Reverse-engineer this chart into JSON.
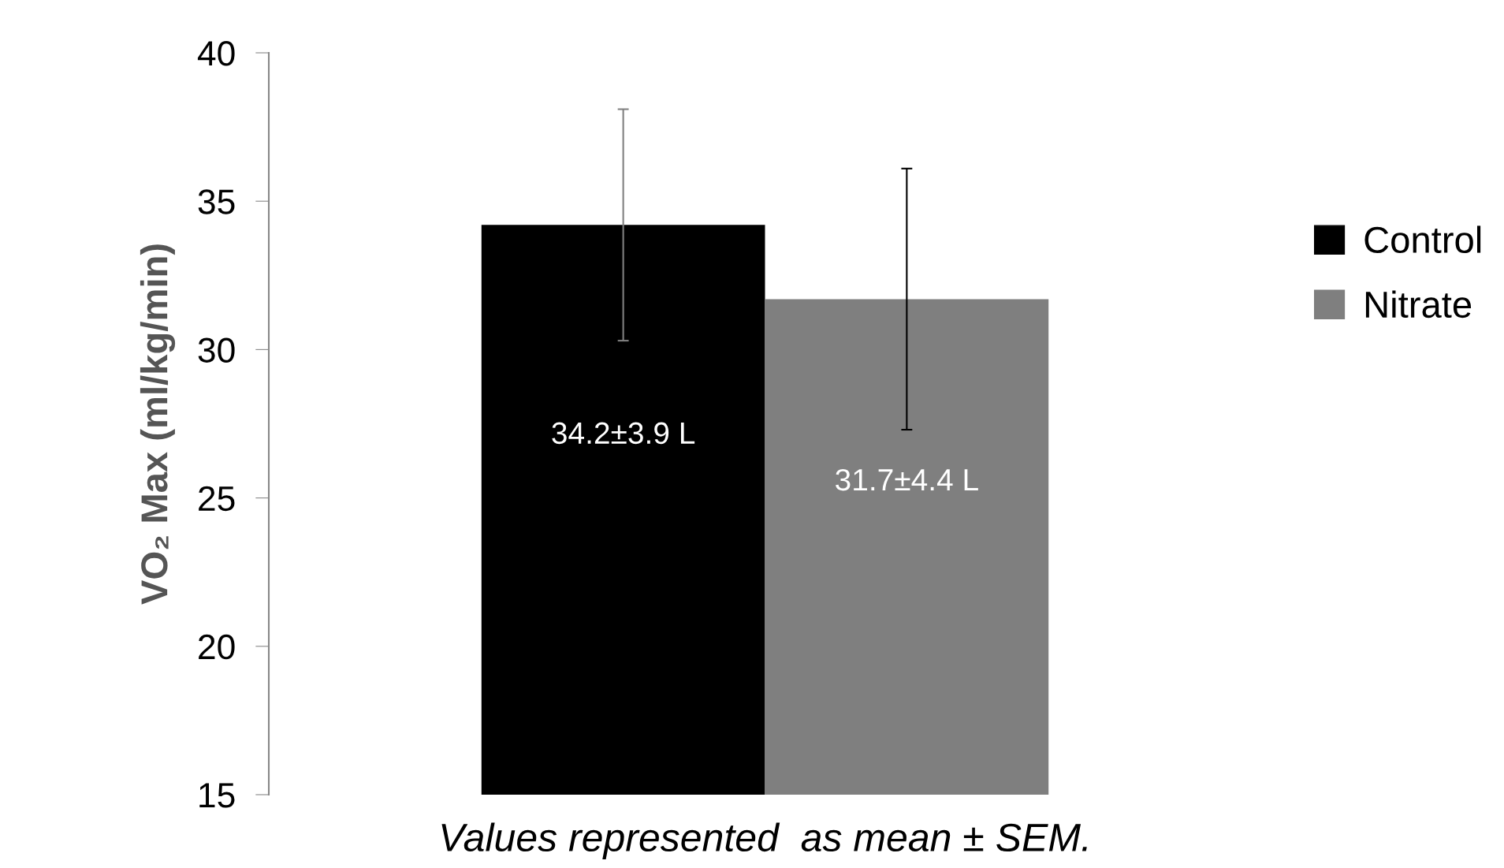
{
  "chart_data": {
    "type": "bar",
    "ylabel": "VO₂ Max (ml/kg/min)",
    "categories": [
      null
    ],
    "series": [
      {
        "name": "Control",
        "color": "#000000",
        "values": [
          34.2
        ],
        "errors": [
          3.9
        ],
        "value_labels": [
          "34.2±3.9 L"
        ]
      },
      {
        "name": "Nitrate",
        "color": "#7f7f7f",
        "values": [
          31.7
        ],
        "errors": [
          4.4
        ],
        "value_labels": [
          "31.7±4.4 L"
        ]
      }
    ],
    "ylim": [
      15,
      40
    ],
    "yticks": [
      15,
      20,
      25,
      30,
      35,
      40
    ],
    "grid": false,
    "legend": "right",
    "annotations": [
      "Values represented  as mean ± SEM."
    ]
  }
}
